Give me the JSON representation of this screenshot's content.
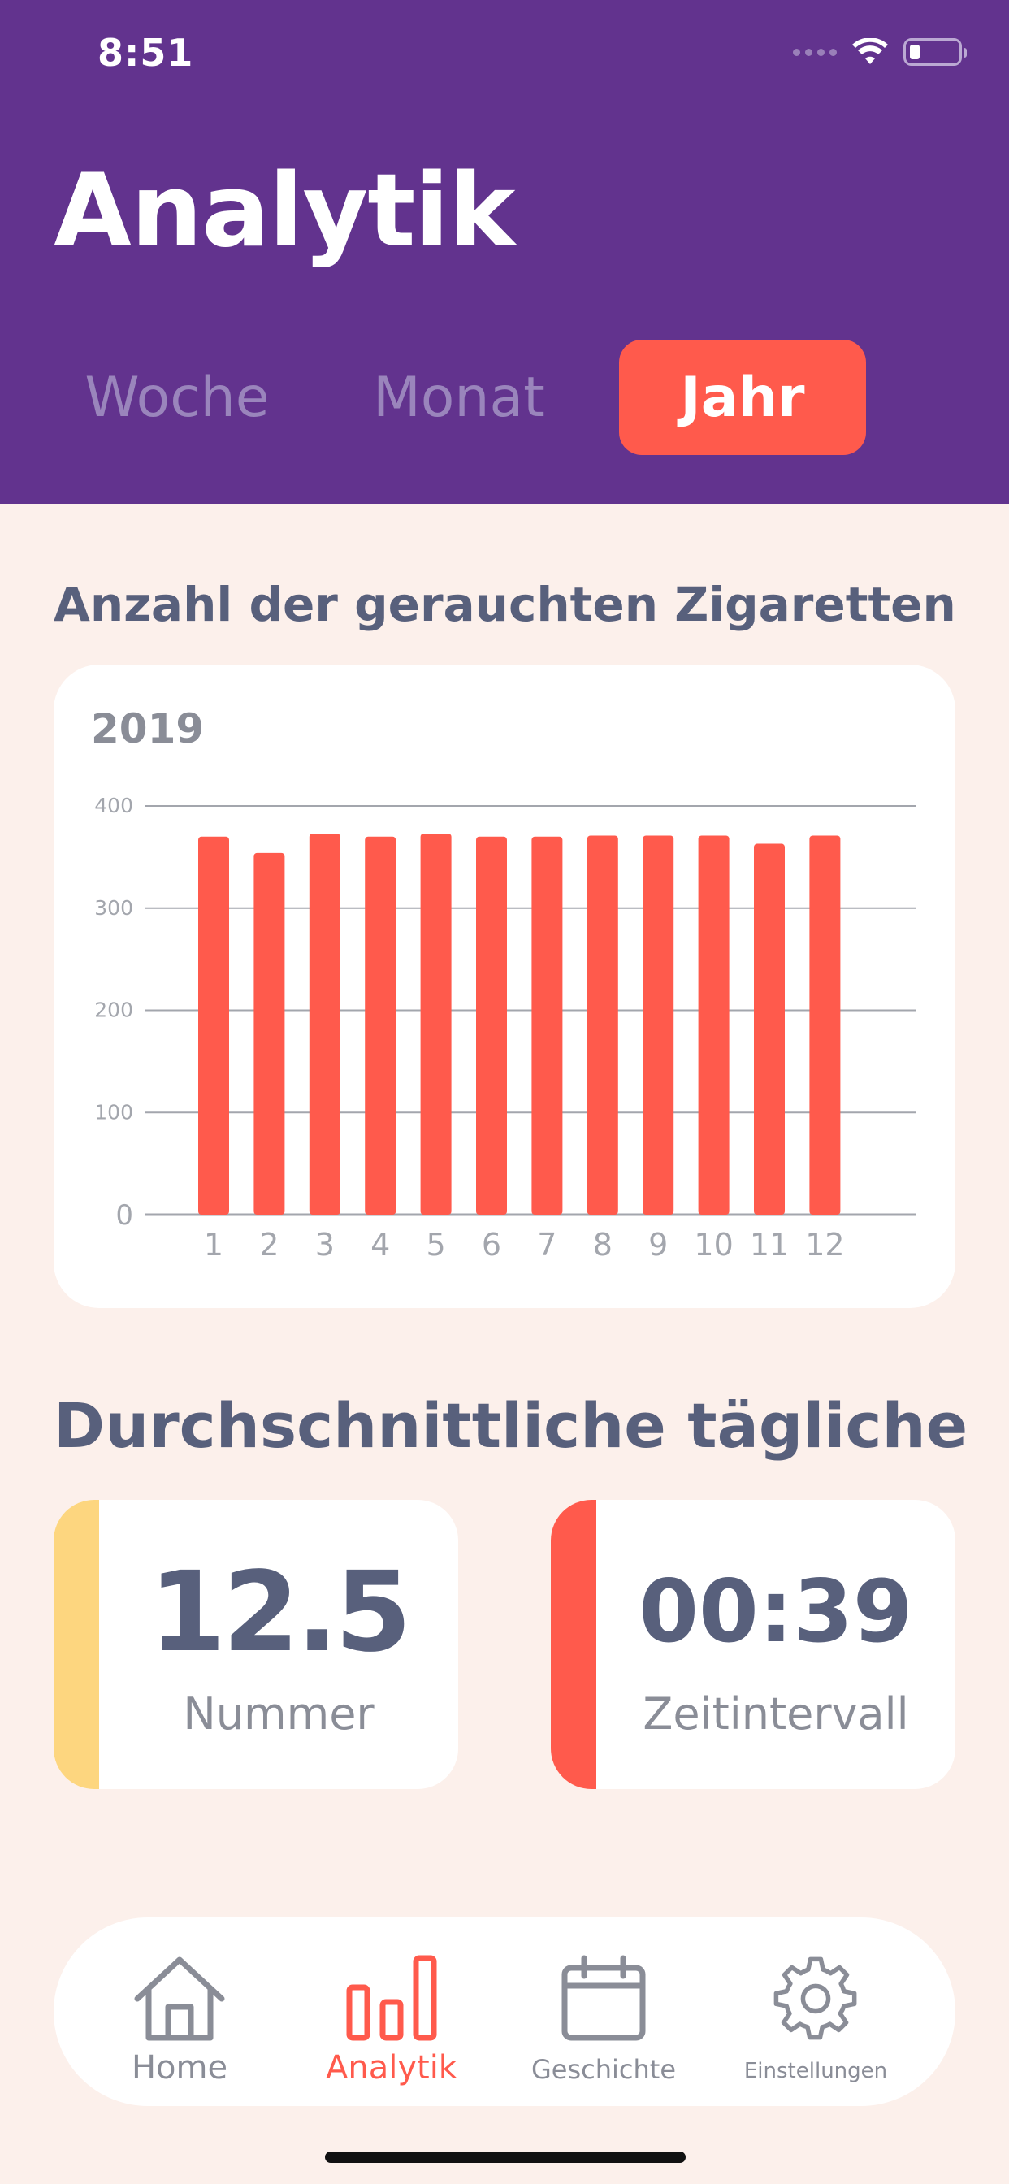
{
  "status_bar": {
    "time": "8:51"
  },
  "header": {
    "title": "Analytik",
    "tabs": [
      {
        "label": "Woche",
        "active": false
      },
      {
        "label": "Monat",
        "active": false
      },
      {
        "label": "Jahr",
        "active": true
      }
    ]
  },
  "chart_section": {
    "title": "Anzahl der gerauchten Zigaretten",
    "year_label": "2019"
  },
  "chart_data": {
    "type": "bar",
    "categories": [
      "1",
      "2",
      "3",
      "4",
      "5",
      "6",
      "7",
      "8",
      "9",
      "10",
      "11",
      "12"
    ],
    "values": [
      370,
      354,
      373,
      370,
      373,
      370,
      370,
      371,
      371,
      371,
      363,
      371
    ],
    "ylim": [
      0,
      400
    ],
    "yticks": [
      0,
      100,
      200,
      300,
      400
    ],
    "grid": true,
    "color": "#ff5a4c"
  },
  "average_section": {
    "title": "Durchschnittliche tägliche",
    "stats": [
      {
        "value": "12.5",
        "label": "Nummer",
        "accent": "#fdd67f"
      },
      {
        "value": "00:39",
        "label": "Zeitintervall",
        "accent": "#ff5a4c"
      }
    ]
  },
  "bottom_nav": {
    "items": [
      {
        "label": "Home",
        "icon": "home-icon",
        "active": false
      },
      {
        "label": "Analytik",
        "icon": "bar-chart-icon",
        "active": true
      },
      {
        "label": "Geschichte",
        "icon": "calendar-icon",
        "active": false
      },
      {
        "label": "Einstellungen",
        "icon": "gear-icon",
        "active": false
      }
    ]
  },
  "colors": {
    "header": "#62338e",
    "accent": "#ff5a4c",
    "background": "#fcf0eb",
    "text_dark": "#58607c",
    "text_muted": "#8a8d97"
  }
}
